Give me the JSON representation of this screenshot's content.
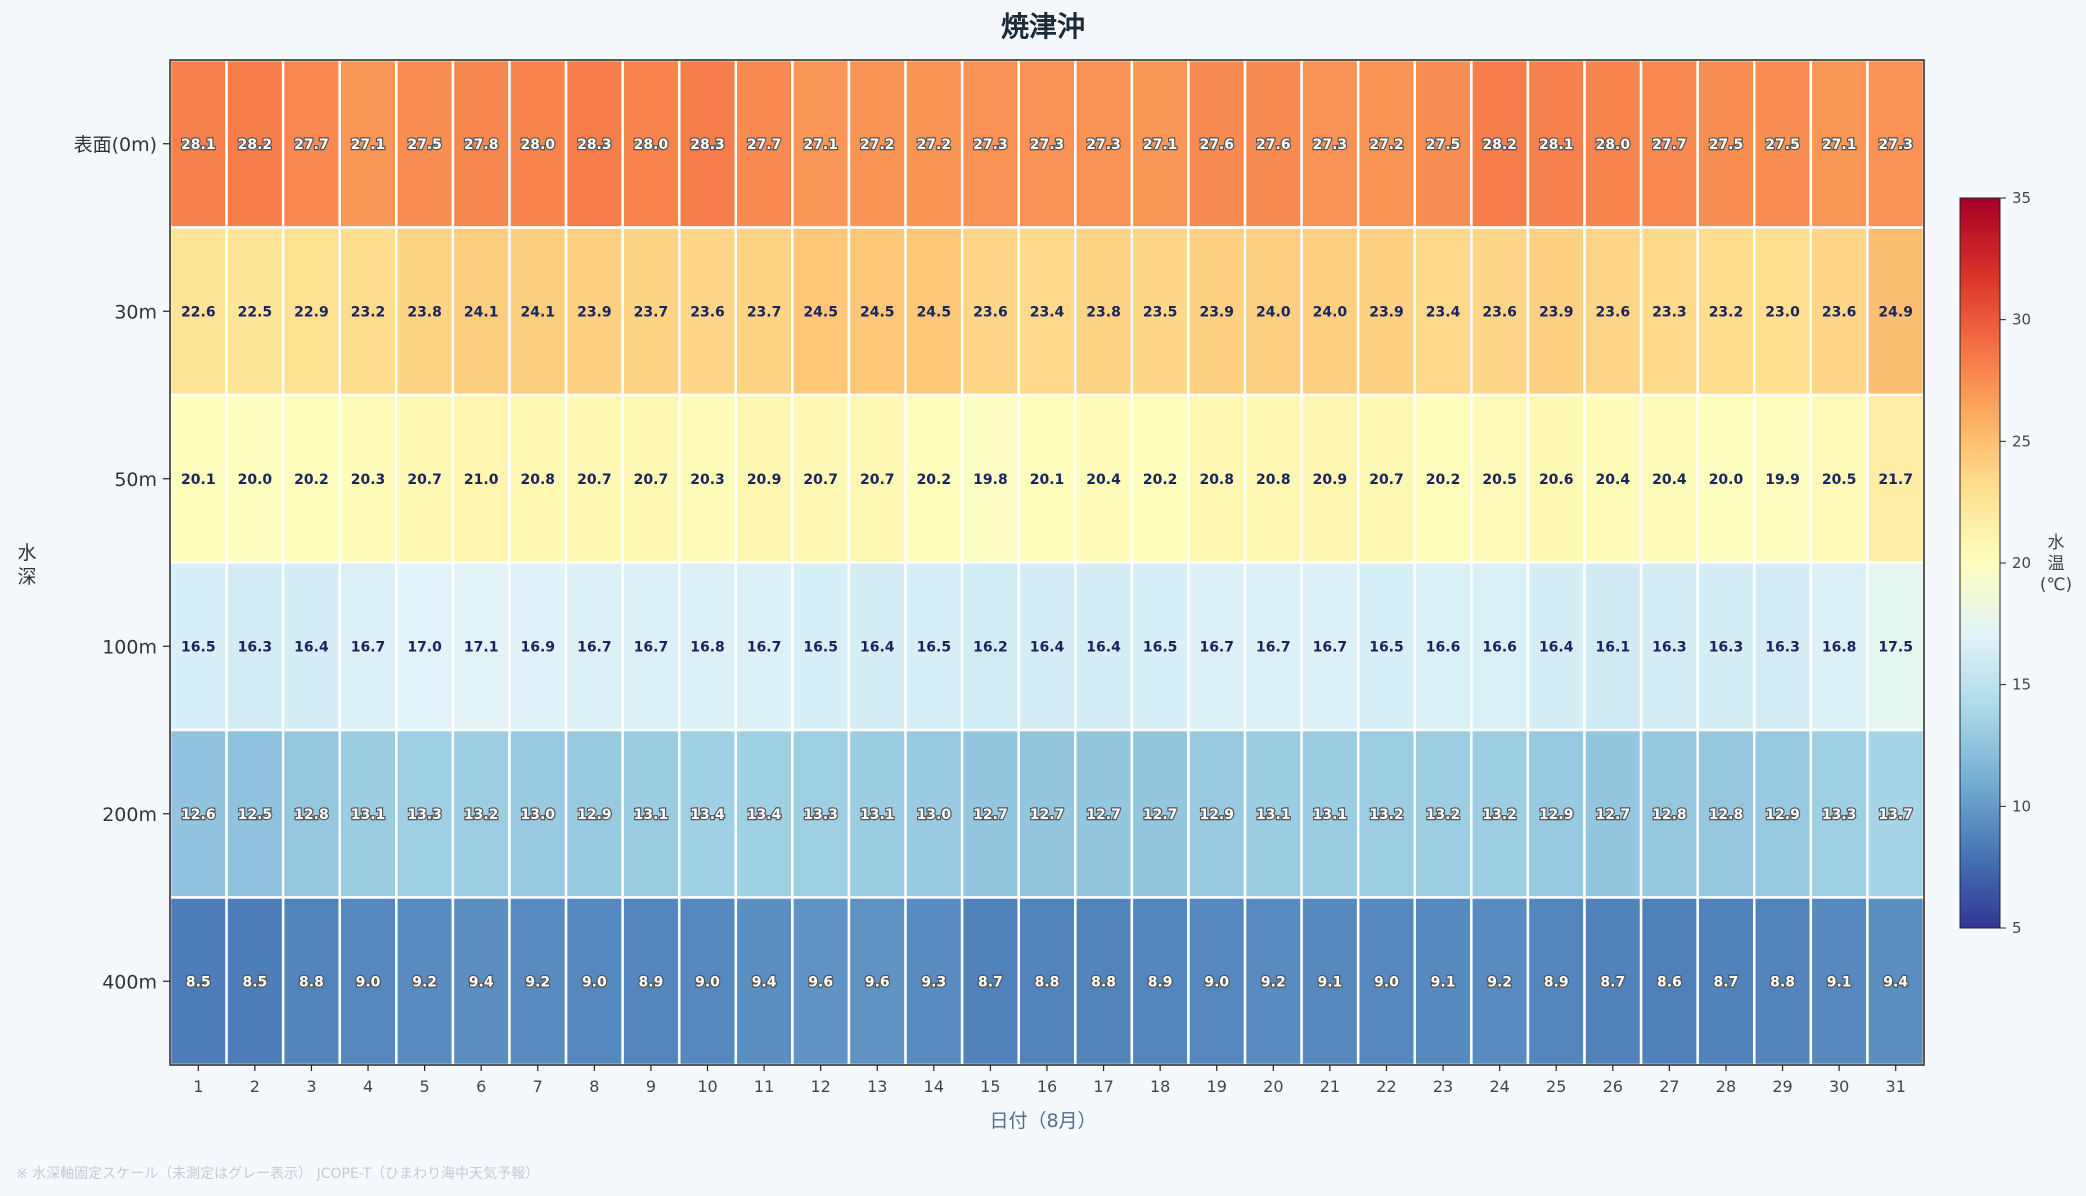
{
  "chart_data": {
    "type": "heatmap",
    "title": "焼津沖",
    "xlabel": "日付（8月）",
    "ylabel": "水深",
    "x": [
      1,
      2,
      3,
      4,
      5,
      6,
      7,
      8,
      9,
      10,
      11,
      12,
      13,
      14,
      15,
      16,
      17,
      18,
      19,
      20,
      21,
      22,
      23,
      24,
      25,
      26,
      27,
      28,
      29,
      30,
      31
    ],
    "y": [
      "表面(0m)",
      "30m",
      "50m",
      "100m",
      "200m",
      "400m"
    ],
    "values": [
      [
        28.1,
        28.2,
        27.7,
        27.1,
        27.5,
        27.8,
        28.0,
        28.3,
        28.0,
        28.3,
        27.7,
        27.1,
        27.2,
        27.2,
        27.3,
        27.3,
        27.3,
        27.1,
        27.6,
        27.6,
        27.3,
        27.2,
        27.5,
        28.2,
        28.1,
        28.0,
        27.7,
        27.5,
        27.5,
        27.1,
        27.3
      ],
      [
        22.6,
        22.5,
        22.9,
        23.2,
        23.8,
        24.1,
        24.1,
        23.9,
        23.7,
        23.6,
        23.7,
        24.5,
        24.5,
        24.5,
        23.6,
        23.4,
        23.8,
        23.5,
        23.9,
        24.0,
        24.0,
        23.9,
        23.4,
        23.6,
        23.9,
        23.6,
        23.3,
        23.2,
        23.0,
        23.6,
        24.9
      ],
      [
        20.1,
        20.0,
        20.2,
        20.3,
        20.7,
        21.0,
        20.8,
        20.7,
        20.7,
        20.3,
        20.9,
        20.7,
        20.7,
        20.2,
        19.8,
        20.1,
        20.4,
        20.2,
        20.8,
        20.8,
        20.9,
        20.7,
        20.2,
        20.5,
        20.6,
        20.4,
        20.4,
        20.0,
        19.9,
        20.5,
        21.7
      ],
      [
        16.5,
        16.3,
        16.4,
        16.7,
        17.0,
        17.1,
        16.9,
        16.7,
        16.7,
        16.8,
        16.7,
        16.5,
        16.4,
        16.5,
        16.2,
        16.4,
        16.4,
        16.5,
        16.7,
        16.7,
        16.7,
        16.5,
        16.6,
        16.6,
        16.4,
        16.1,
        16.3,
        16.3,
        16.3,
        16.8,
        17.5
      ],
      [
        12.6,
        12.5,
        12.8,
        13.1,
        13.3,
        13.2,
        13.0,
        12.9,
        13.1,
        13.4,
        13.4,
        13.3,
        13.1,
        13.0,
        12.7,
        12.7,
        12.7,
        12.7,
        12.9,
        13.1,
        13.1,
        13.2,
        13.2,
        13.2,
        12.9,
        12.7,
        12.8,
        12.8,
        12.9,
        13.3,
        13.7
      ],
      [
        8.5,
        8.5,
        8.8,
        9.0,
        9.2,
        9.4,
        9.2,
        9.0,
        8.9,
        9.0,
        9.4,
        9.6,
        9.6,
        9.3,
        8.7,
        8.8,
        8.8,
        8.9,
        9.0,
        9.2,
        9.1,
        9.0,
        9.1,
        9.2,
        8.9,
        8.7,
        8.6,
        8.7,
        8.8,
        9.1,
        9.4
      ]
    ],
    "colorbar": {
      "label": "水温(℃)",
      "range": [
        5,
        35
      ],
      "ticks": [
        "5",
        "10",
        "15",
        "20",
        "25",
        "30",
        "35"
      ],
      "colormap": "RdYlBu_r"
    },
    "grid": false,
    "legend": "colorbar-right"
  },
  "footnote": "※ 水深軸固定スケール（未測定はグレー表示） JCOPE-T（ひまわり海中天気予報）",
  "colors": {
    "background": "#f5f9fd",
    "title": "#1d2a3a",
    "axis_label": "#4f6f8f",
    "cell_border": "#ffffff"
  }
}
